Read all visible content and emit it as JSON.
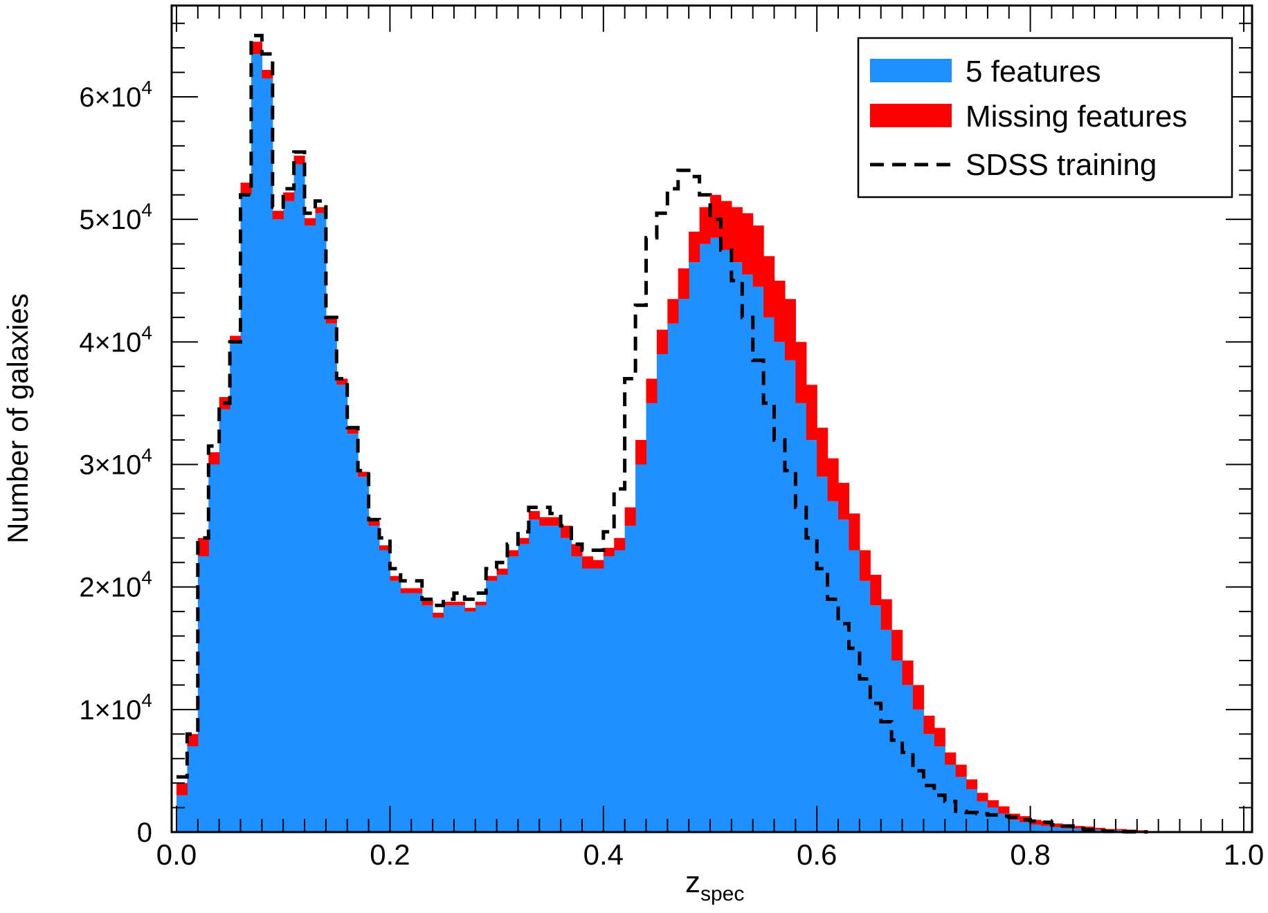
{
  "chart_data": {
    "type": "bar",
    "stacked": true,
    "xlabel": "z",
    "xlabel_subscript": "spec",
    "ylabel": "Number of galaxies",
    "xlim": [
      0.0,
      1.0
    ],
    "ylim": [
      0,
      66500
    ],
    "x_ticks": [
      "0.0",
      "0.2",
      "0.4",
      "0.6",
      "0.8",
      "1.0"
    ],
    "y_ticks": [
      {
        "value": 0,
        "mantissa": "0",
        "exponent": ""
      },
      {
        "value": 10000,
        "mantissa": "1×10",
        "exponent": "4"
      },
      {
        "value": 20000,
        "mantissa": "2×10",
        "exponent": "4"
      },
      {
        "value": 30000,
        "mantissa": "3×10",
        "exponent": "4"
      },
      {
        "value": 40000,
        "mantissa": "4×10",
        "exponent": "4"
      },
      {
        "value": 50000,
        "mantissa": "5×10",
        "exponent": "4"
      },
      {
        "value": 60000,
        "mantissa": "6×10",
        "exponent": "4"
      }
    ],
    "bin_width": 0.01,
    "bin_start": 0.0,
    "legend_position": "top-right",
    "grid": false,
    "colors": {
      "five": "#1E90FF",
      "missing": "#FF0000",
      "sdss": "#000000"
    },
    "series": [
      {
        "name": "5 features",
        "kind": "histogram",
        "values": [
          3000,
          7000,
          22500,
          30000,
          34500,
          40000,
          52000,
          63500,
          61500,
          50000,
          51500,
          54500,
          49500,
          50500,
          41500,
          36500,
          32500,
          29000,
          25000,
          23000,
          20500,
          19500,
          19500,
          18500,
          17500,
          18500,
          18500,
          18000,
          18500,
          20500,
          21000,
          22500,
          23500,
          25500,
          25000,
          25000,
          24000,
          22500,
          21500,
          21500,
          22500,
          23000,
          25000,
          30000,
          35000,
          39000,
          41500,
          43500,
          46500,
          48000,
          48500,
          47500,
          46500,
          45500,
          44500,
          42000,
          40000,
          38500,
          35000,
          32000,
          29000,
          27000,
          25500,
          23000,
          20500,
          18500,
          16500,
          14000,
          12000,
          10000,
          8000,
          7000,
          5500,
          4500,
          3500,
          2500,
          2000,
          1500,
          1000,
          800,
          600,
          500,
          400,
          300,
          300,
          250,
          200,
          150,
          150,
          100,
          100
        ]
      },
      {
        "name": "Missing features",
        "kind": "histogram",
        "values": [
          1000,
          1000,
          1500,
          1000,
          1000,
          500,
          1000,
          1000,
          700,
          700,
          700,
          700,
          600,
          500,
          500,
          500,
          500,
          400,
          400,
          400,
          400,
          400,
          400,
          400,
          400,
          300,
          300,
          300,
          300,
          400,
          500,
          500,
          500,
          700,
          700,
          700,
          1000,
          1000,
          1000,
          700,
          700,
          1000,
          1500,
          2000,
          2000,
          2000,
          2000,
          2500,
          2500,
          3000,
          3500,
          4000,
          4500,
          5000,
          5000,
          5000,
          5000,
          5000,
          5000,
          4500,
          4000,
          3500,
          3000,
          3000,
          2500,
          2500,
          2500,
          2500,
          2000,
          2000,
          1500,
          1500,
          1000,
          1000,
          800,
          700,
          600,
          600,
          500,
          500,
          400,
          400,
          300,
          300,
          200,
          200,
          150,
          100,
          100,
          100,
          50
        ]
      },
      {
        "name": "SDSS training",
        "kind": "step-line",
        "style": "dashed",
        "values": [
          4500,
          8000,
          24000,
          31500,
          35000,
          40000,
          52000,
          65000,
          63500,
          51000,
          52500,
          55500,
          50500,
          51500,
          42000,
          37000,
          33000,
          29500,
          25500,
          24000,
          21500,
          20500,
          20500,
          19000,
          18500,
          19000,
          19500,
          19000,
          19500,
          21500,
          22000,
          23500,
          24500,
          26500,
          26500,
          26000,
          25000,
          23500,
          23000,
          23000,
          24500,
          28000,
          37000,
          43000,
          48500,
          50500,
          52500,
          54000,
          53500,
          52000,
          50000,
          47500,
          45000,
          42000,
          38500,
          35000,
          32000,
          29500,
          26500,
          24000,
          21500,
          19000,
          17000,
          15000,
          12500,
          10500,
          9000,
          7500,
          6500,
          5000,
          3800,
          3000,
          2500,
          1700,
          1600,
          1500,
          1400,
          1300,
          1200,
          1000,
          900,
          800,
          600,
          500,
          300,
          200,
          100,
          50,
          30,
          20,
          10
        ]
      }
    ]
  }
}
